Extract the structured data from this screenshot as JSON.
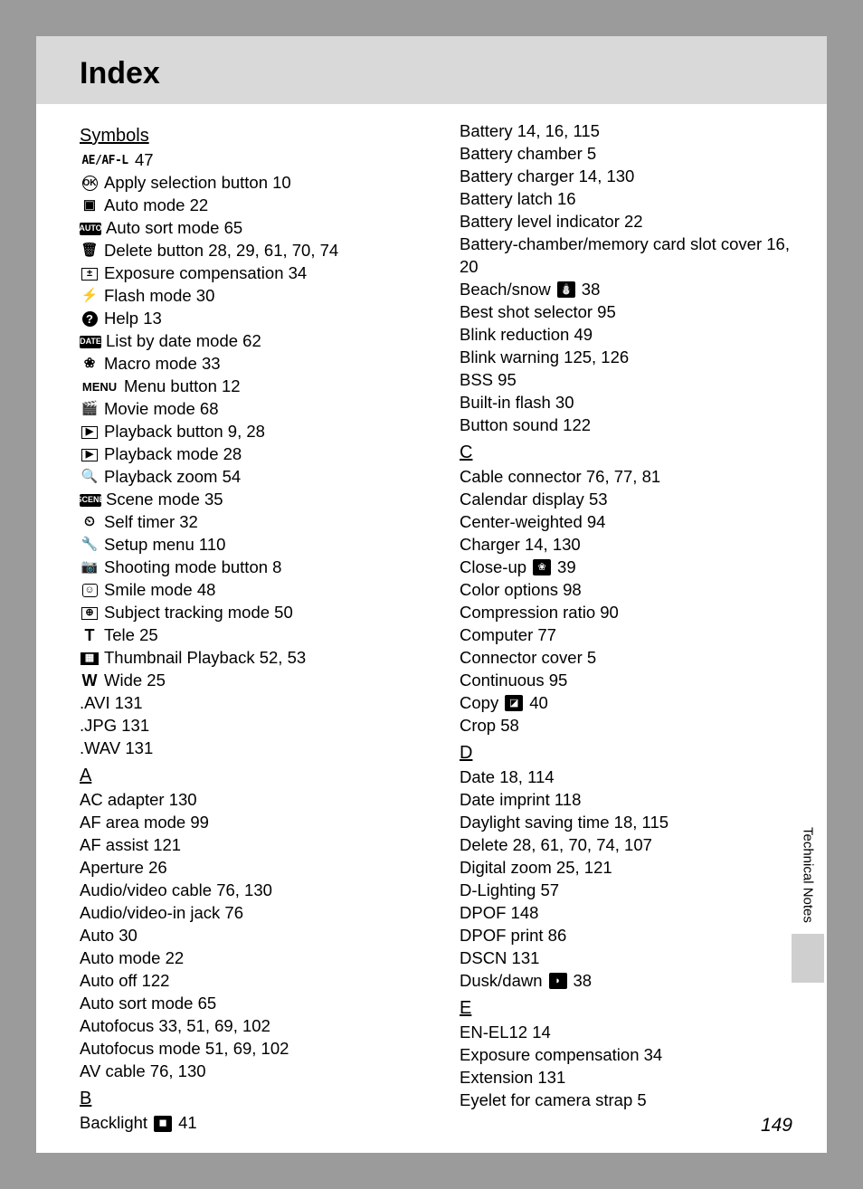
{
  "page_title": "Index",
  "side_label": "Technical Notes",
  "page_number": "149",
  "colors": {
    "page_bg": "#ffffff",
    "outer_bg": "#9b9b9b",
    "header_bg": "#d9d9d9",
    "tab_bg": "#cfcfcf",
    "text": "#000000"
  },
  "left": {
    "symbols_header": "Symbols",
    "symbols": [
      {
        "icon": "AE/AF-L",
        "text": "47",
        "w": 56
      },
      {
        "icon": "OK",
        "text": "Apply selection button 10",
        "style": "circle"
      },
      {
        "icon": "▣",
        "text": "Auto mode 22"
      },
      {
        "icon": "AUTO",
        "text": "Auto sort mode 65",
        "small": true
      },
      {
        "icon": "🗑",
        "text": "Delete button 28, 29, 61, 70, 74"
      },
      {
        "icon": "±",
        "text": "Exposure compensation 34",
        "style": "box"
      },
      {
        "icon": "⚡",
        "text": "Flash mode 30"
      },
      {
        "icon": "?",
        "text": "Help 13",
        "style": "circle-filled"
      },
      {
        "icon": "DATE",
        "text": "List by date mode 62",
        "small": true
      },
      {
        "icon": "❀",
        "text": "Macro mode 33"
      },
      {
        "icon": "MENU",
        "text": "Menu button 12",
        "w": 44
      },
      {
        "icon": "🎬",
        "text": "Movie mode 68"
      },
      {
        "icon": "▶",
        "text": "Playback button 9, 28",
        "style": "box"
      },
      {
        "icon": "▶",
        "text": "Playback mode 28",
        "style": "box"
      },
      {
        "icon": "🔍",
        "text": "Playback zoom 54"
      },
      {
        "icon": "SCENE",
        "text": "Scene mode 35",
        "small": true
      },
      {
        "icon": "⏲",
        "text": "Self timer 32"
      },
      {
        "icon": "🔧",
        "text": "Setup menu 110"
      },
      {
        "icon": "📷",
        "text": "Shooting mode button 8"
      },
      {
        "icon": "☺",
        "text": "Smile mode 48",
        "style": "smile"
      },
      {
        "icon": "⊕",
        "text": "Subject tracking mode 50",
        "style": "box"
      },
      {
        "icon": "T",
        "text": "Tele 25",
        "bold": true
      },
      {
        "icon": "▦",
        "text": "Thumbnail Playback 52, 53",
        "style": "box-filled"
      },
      {
        "icon": "W",
        "text": "Wide 25",
        "bold": true
      }
    ],
    "symbols_plain": [
      ".AVI 131",
      ".JPG 131",
      ".WAV 131"
    ],
    "a_header": "A",
    "a": [
      "AC adapter 130",
      "AF area mode 99",
      "AF assist 121",
      "Aperture 26",
      "Audio/video cable 76, 130",
      "Audio/video-in jack 76",
      "Auto 30",
      "Auto mode 22",
      "Auto off 122",
      "Auto sort mode 65",
      "Autofocus 33, 51, 69, 102",
      "Autofocus mode 51, 69, 102",
      "AV cable 76, 130"
    ],
    "b_header": "B",
    "b_first": {
      "pre": "Backlight",
      "icon": "◼",
      "post": "41"
    }
  },
  "right": {
    "b_cont": [
      "Battery 14, 16, 115",
      "Battery chamber 5",
      "Battery charger 14, 130",
      "Battery latch 16",
      "Battery level indicator 22",
      "Battery-chamber/memory card slot cover 16, 20"
    ],
    "b_beach": {
      "pre": "Beach/snow",
      "icon": "⛄",
      "post": "38"
    },
    "b_cont2": [
      "Best shot selector 95",
      "Blink reduction 49",
      "Blink warning 125, 126",
      "BSS 95",
      "Built-in flash 30",
      "Button sound 122"
    ],
    "c_header": "C",
    "c": [
      "Cable connector 76, 77, 81",
      "Calendar display 53",
      "Center-weighted 94",
      "Charger 14, 130"
    ],
    "c_closeup": {
      "pre": "Close-up",
      "icon": "❀",
      "post": "39"
    },
    "c2": [
      "Color options 98",
      "Compression ratio 90",
      "Computer 77",
      "Connector cover 5",
      "Continuous 95"
    ],
    "c_copy": {
      "pre": "Copy",
      "icon": "◪",
      "post": "40"
    },
    "c3": [
      "Crop 58"
    ],
    "d_header": "D",
    "d": [
      "Date 18, 114",
      "Date imprint 118",
      "Daylight saving time 18, 115",
      "Delete 28, 61, 70, 74, 107",
      "Digital zoom 25, 121",
      "D-Lighting 57",
      "DPOF 148",
      "DPOF print 86",
      "DSCN 131"
    ],
    "d_dusk": {
      "pre": "Dusk/dawn",
      "icon": "◗",
      "post": "38"
    },
    "e_header": "E",
    "e": [
      "EN-EL12 14",
      "Exposure compensation 34",
      "Extension 131",
      "Eyelet for camera strap 5"
    ]
  }
}
